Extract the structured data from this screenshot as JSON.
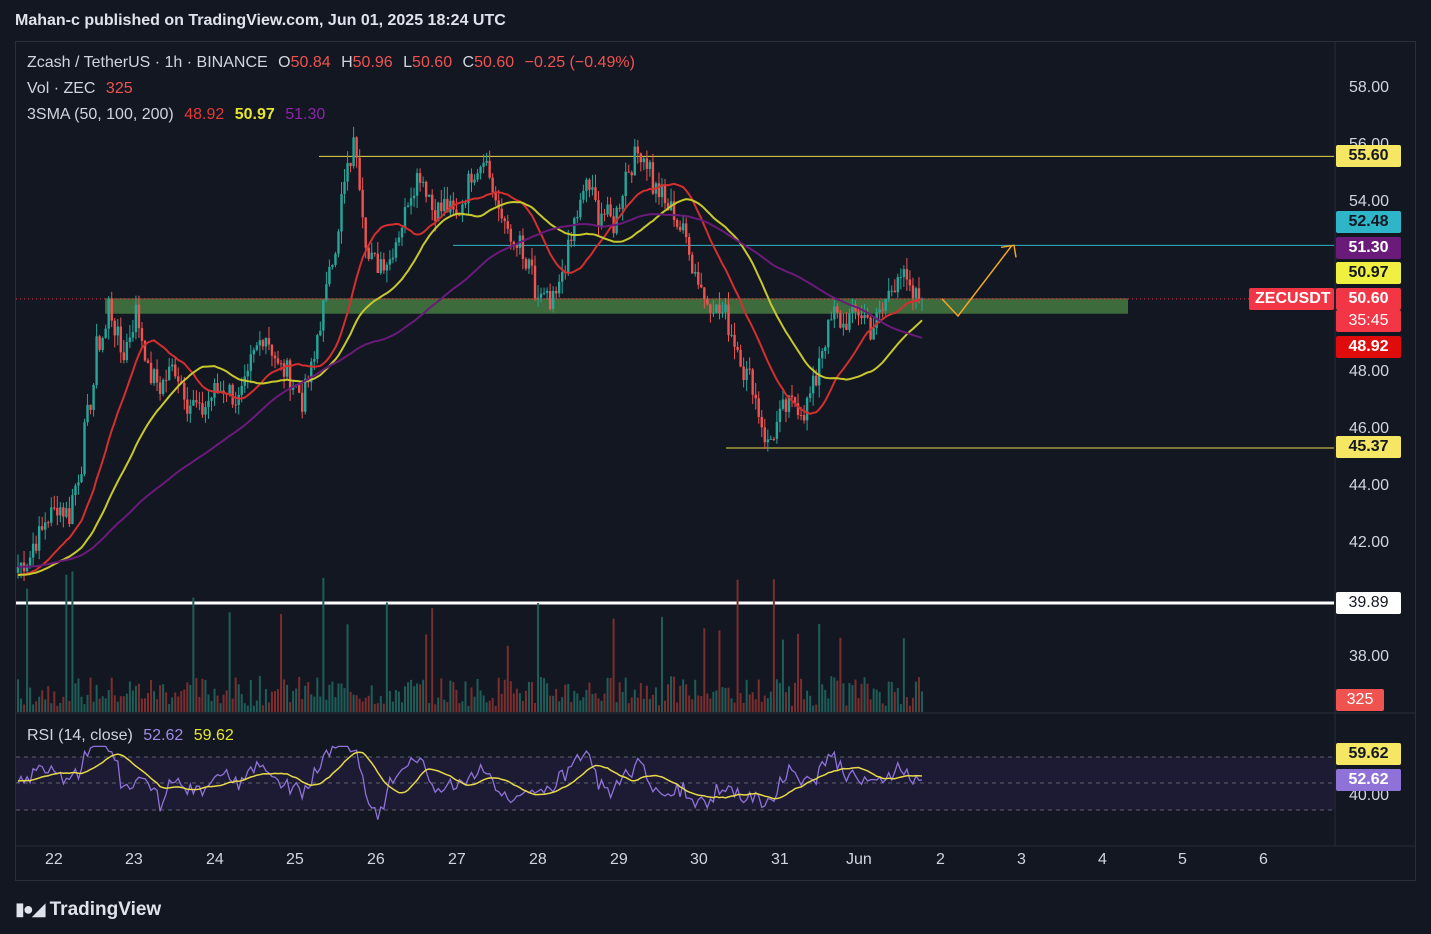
{
  "header": {
    "publisher": "Mahan-c published on TradingView.com, Jun 01, 2025 18:24 UTC"
  },
  "legend": {
    "symbol": "Zcash / TetherUS · 1h · BINANCE",
    "o_label": "O",
    "o_value": "50.84",
    "h_label": "H",
    "h_value": "50.96",
    "l_label": "L",
    "l_value": "50.60",
    "c_label": "C",
    "c_value": "50.60",
    "change": "−0.25 (−0.49%)",
    "vol_label": "Vol · ZEC",
    "vol_value": "325",
    "sma_label": "3SMA (50, 100, 200)",
    "sma50": "48.92",
    "sma100": "50.97",
    "sma200": "51.30",
    "rsi_label": "RSI (14, close)",
    "rsi_value": "52.62",
    "rsi_ma": "59.62"
  },
  "price_axis": [
    "58.00",
    "56.00",
    "54.00",
    "48.00",
    "46.00",
    "44.00",
    "42.00",
    "38.00"
  ],
  "rsi_axis": [
    "40.00"
  ],
  "time_axis": [
    "22",
    "23",
    "24",
    "25",
    "26",
    "27",
    "28",
    "29",
    "30",
    "31",
    "Jun",
    "2",
    "3",
    "4",
    "5",
    "6"
  ],
  "tags": {
    "resistance": "55.60",
    "mid_level": "52.48",
    "sma200": "51.30",
    "sma100": "50.97",
    "symbol": "ZECUSDT",
    "last": "50.60",
    "countdown": "35:45",
    "sma50": "48.92",
    "support": "45.37",
    "white_level": "39.89",
    "volume": "325",
    "rsi_ma": "59.62",
    "rsi": "52.62"
  },
  "colors": {
    "background": "#131722",
    "up": "#26a69a",
    "down": "#ef5350",
    "sma50": "#d32f2f",
    "sma100": "#c8c82d",
    "sma200": "#6a1b7a",
    "resistance_line": "#e6d84a",
    "mid_line": "#2fb5c8",
    "zone": "#3e6b3c",
    "projection": "#f5a623",
    "rsi_line": "#8e72d8",
    "rsi_ma": "#e6d84a"
  },
  "chart_data": {
    "type": "candlestick",
    "symbol": "ZECUSDT",
    "interval": "1h",
    "exchange": "BINANCE",
    "x_range": [
      "May 22",
      "Jun 6"
    ],
    "y_range": [
      37,
      59
    ],
    "ohlc_path": [
      [
        41.0,
        41.2
      ],
      [
        41.6,
        41.9
      ],
      [
        42.5,
        42.8
      ],
      [
        43.2,
        43.4
      ],
      [
        43.0,
        43.3
      ],
      [
        45.0,
        45.5
      ],
      [
        48.0,
        48.8
      ],
      [
        49.7,
        50.5
      ],
      [
        48.7,
        48.4
      ],
      [
        49.9,
        50.4
      ],
      [
        48.5,
        48.0
      ],
      [
        47.6,
        47.5
      ],
      [
        48.2,
        48.4
      ],
      [
        47.3,
        47.0
      ],
      [
        46.8,
        46.5
      ],
      [
        47.2,
        47.3
      ],
      [
        47.5,
        47.6
      ],
      [
        47.0,
        46.9
      ],
      [
        47.9,
        48.3
      ],
      [
        49.4,
        49.6
      ],
      [
        48.5,
        48.2
      ],
      [
        48.0,
        47.9
      ],
      [
        47.2,
        47.0
      ],
      [
        48.5,
        49.0
      ],
      [
        51.0,
        51.8
      ],
      [
        53.0,
        54.0
      ],
      [
        56.0,
        56.8
      ],
      [
        52.5,
        52.0
      ],
      [
        51.8,
        52.0
      ],
      [
        52.0,
        52.4
      ],
      [
        53.6,
        54.0
      ],
      [
        55.0,
        55.2
      ],
      [
        54.1,
        53.8
      ],
      [
        53.7,
        53.9
      ],
      [
        53.4,
        53.5
      ],
      [
        54.8,
        55.0
      ],
      [
        55.5,
        55.9
      ],
      [
        54.0,
        53.4
      ],
      [
        53.4,
        52.2
      ],
      [
        52.5,
        51.9
      ],
      [
        51.3,
        50.7
      ],
      [
        50.5,
        50.0
      ],
      [
        51.0,
        51.4
      ],
      [
        52.8,
        53.2
      ],
      [
        54.4,
        54.8
      ],
      [
        53.5,
        53.8
      ],
      [
        53.3,
        53.0
      ],
      [
        54.8,
        55.0
      ],
      [
        55.7,
        56.0
      ],
      [
        55.2,
        54.6
      ],
      [
        54.2,
        53.9
      ],
      [
        53.6,
        53.3
      ],
      [
        52.5,
        52.0
      ],
      [
        51.0,
        50.6
      ],
      [
        50.5,
        50.2
      ],
      [
        50.0,
        49.7
      ],
      [
        48.6,
        48.2
      ],
      [
        47.6,
        47.3
      ],
      [
        45.5,
        45.4
      ],
      [
        46.4,
        46.6
      ],
      [
        46.9,
        47.1
      ],
      [
        46.6,
        46.8
      ],
      [
        48.0,
        48.6
      ],
      [
        49.8,
        50.2
      ],
      [
        49.6,
        49.8
      ],
      [
        50.1,
        50.2
      ],
      [
        49.8,
        49.5
      ],
      [
        50.2,
        50.4
      ],
      [
        51.3,
        51.8
      ],
      [
        50.9,
        50.7
      ],
      [
        50.6,
        50.6
      ]
    ],
    "sma50": {
      "last": 48.92
    },
    "sma100": {
      "last": 50.97
    },
    "sma200": {
      "last": 51.3
    },
    "horizontal_levels": [
      55.6,
      52.48,
      45.37,
      39.89
    ],
    "zone": [
      50.15,
      50.55
    ],
    "projection": [
      [
        50.6,
        "Jun 1 20:00"
      ],
      [
        50.0,
        "Jun 2 00:00"
      ],
      [
        52.48,
        "Jun 2 12:00"
      ]
    ],
    "rsi": {
      "last": 52.62,
      "ma_last": 59.62
    },
    "volume_last": 325
  }
}
